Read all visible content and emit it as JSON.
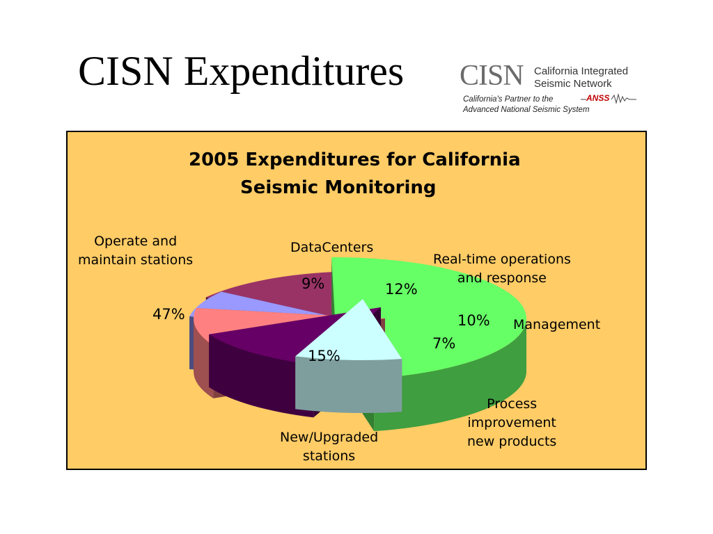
{
  "slide": {
    "title": "CISN Expenditures"
  },
  "logo": {
    "mark": "CISN",
    "name_line1": "California Integrated",
    "name_line2": "Seismic Network",
    "tagline_line1": "California's Partner to the",
    "tagline_line2": "Advanced National Seismic System",
    "anss_mark": "ANSS"
  },
  "chart_data": {
    "type": "pie",
    "title": "2005 Expenditures for California Seismic Monitoring",
    "title_line1": "2005 Expenditures for California",
    "title_line2": "Seismic Monitoring",
    "three_d": true,
    "exploded": true,
    "slices": [
      {
        "name": "Operate and maintain stations",
        "name_lines": [
          "Operate and",
          "maintain stations"
        ],
        "value": 47,
        "label": "47%",
        "color": "#66ff66"
      },
      {
        "name": "DataCenters",
        "name_lines": [
          "DataCenters"
        ],
        "value": 9,
        "label": "9%",
        "color": "#ccffff"
      },
      {
        "name": "Real-time operations and response",
        "name_lines": [
          "Real-time operations",
          "and response"
        ],
        "value": 12,
        "label": "12%",
        "color": "#660066"
      },
      {
        "name": "Management",
        "name_lines": [
          "Management"
        ],
        "value": 10,
        "label": "10%",
        "color": "#ff8080"
      },
      {
        "name": "Process improvement new products",
        "name_lines": [
          "Process",
          "improvement",
          "new products"
        ],
        "value": 7,
        "label": "7%",
        "color": "#9999ff"
      },
      {
        "name": "New/Upgraded stations",
        "name_lines": [
          "New/Upgraded",
          "stations"
        ],
        "value": 15,
        "label": "15%",
        "color": "#993366"
      }
    ]
  }
}
